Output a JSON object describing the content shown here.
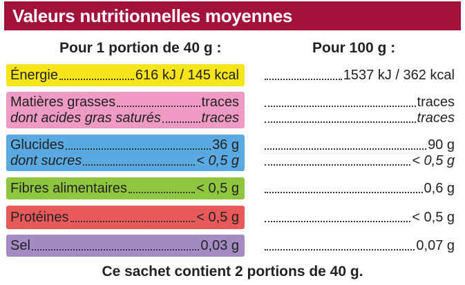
{
  "title": "Valeurs nutritionnelles moyennes",
  "headers": {
    "per_portion": "Pour 1 portion de 40 g :",
    "per_100g": "Pour 100 g :"
  },
  "rows": [
    {
      "label": "Énergie",
      "portion": "616 kJ / 145 kcal",
      "per100": "1537 kJ / 362 kcal",
      "color": "#f7e51b"
    },
    {
      "label": "Matières grasses",
      "portion": "traces",
      "per100": "traces",
      "color": "#ee9ac4"
    },
    {
      "label": "dont acides gras saturés",
      "portion": "traces",
      "per100": "traces",
      "color": "#ee9ac4"
    },
    {
      "label": "Glucides",
      "portion": "36 g",
      "per100": "90 g",
      "color": "#5aa9e0"
    },
    {
      "label": "dont sucres",
      "portion": "< 0,5 g",
      "per100": "< 0,5 g",
      "color": "#5aa9e0"
    },
    {
      "label": "Fibres alimentaires",
      "portion": "< 0,5 g",
      "per100": "0,6 g",
      "color": "#8fc63f"
    },
    {
      "label": "Protéines",
      "portion": "< 0,5 g",
      "per100": "< 0,5 g",
      "color": "#e85a5a"
    },
    {
      "label": "Sel",
      "portion": "0,03 g",
      "per100": "0,07 g",
      "color": "#a58bc4"
    }
  ],
  "footer": "Ce sachet contient 2 portions de 40 g."
}
